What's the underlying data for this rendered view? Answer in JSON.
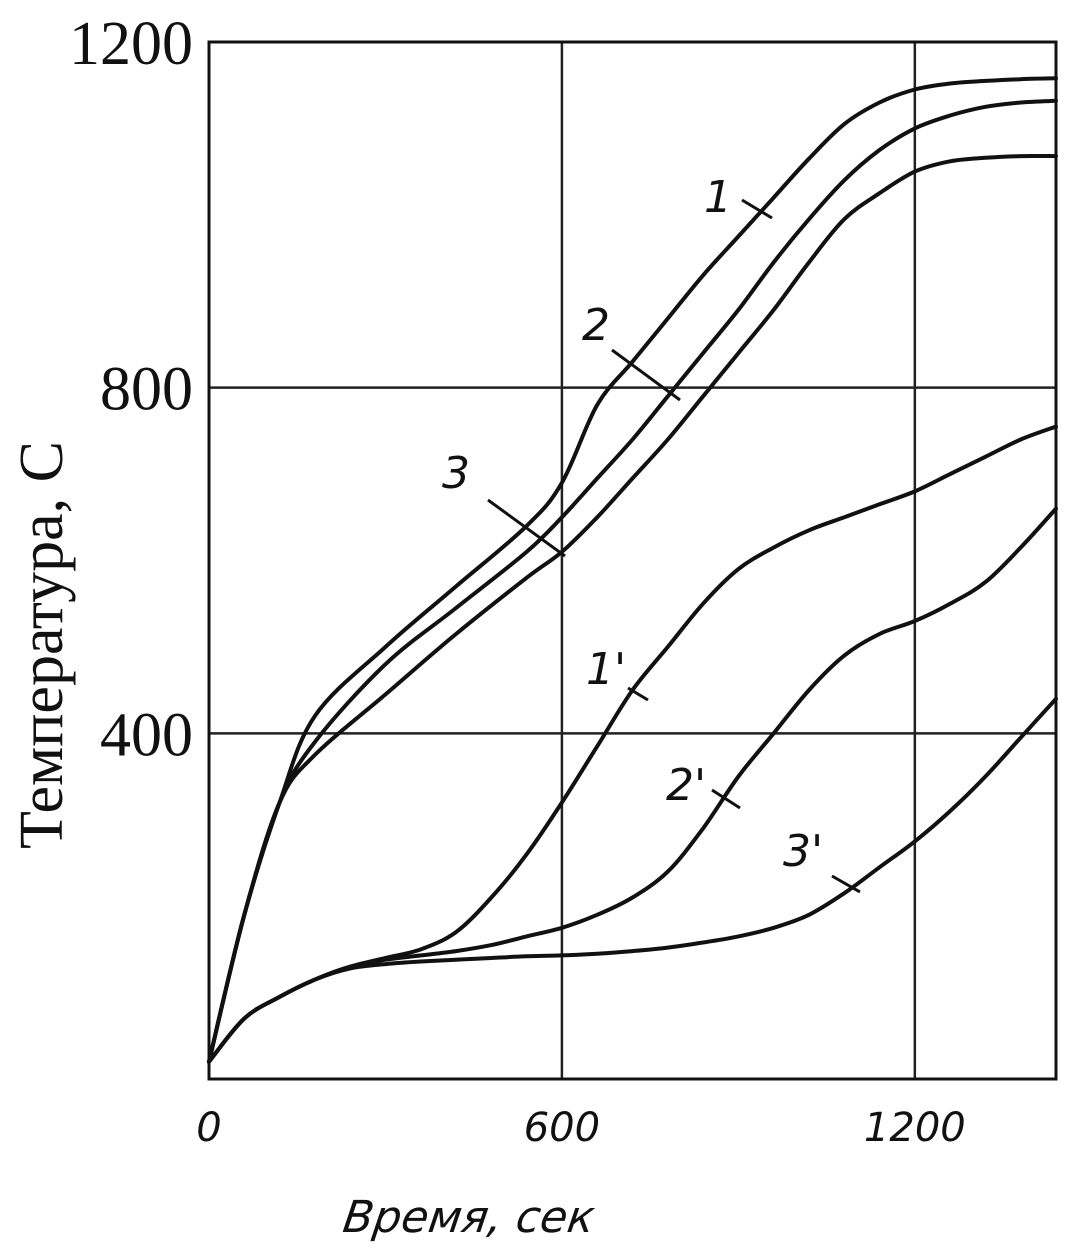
{
  "chart_data": {
    "type": "line",
    "title": "",
    "xlabel": "Время, сек",
    "ylabel": "Температура, С",
    "xlim": [
      0,
      1440
    ],
    "ylim": [
      0,
      1200
    ],
    "x_ticks": [
      {
        "value": 0,
        "label": "0"
      },
      {
        "value": 600,
        "label": "600"
      },
      {
        "value": 1200,
        "label": "1200"
      }
    ],
    "y_ticks": [
      {
        "value": 400,
        "label": "400"
      },
      {
        "value": 800,
        "label": "800"
      },
      {
        "value": 1200,
        "label": "1200"
      }
    ],
    "grid": true,
    "series": [
      {
        "name": "1",
        "x": [
          0,
          60,
          120,
          180,
          300,
          420,
          540,
          600,
          660,
          720,
          780,
          840,
          900,
          960,
          1020,
          1080,
          1140,
          1200,
          1260,
          1320,
          1380,
          1440
        ],
        "y": [
          20,
          190,
          320,
          420,
          500,
          570,
          640,
          690,
          780,
          830,
          880,
          930,
          975,
          1020,
          1065,
          1105,
          1130,
          1145,
          1152,
          1155,
          1157,
          1158
        ]
      },
      {
        "name": "2",
        "x": [
          0,
          60,
          120,
          180,
          300,
          420,
          540,
          600,
          660,
          720,
          780,
          840,
          900,
          960,
          1020,
          1080,
          1140,
          1200,
          1260,
          1320,
          1380,
          1440
        ],
        "y": [
          20,
          190,
          320,
          390,
          480,
          545,
          610,
          650,
          695,
          740,
          790,
          840,
          890,
          945,
          995,
          1040,
          1075,
          1100,
          1115,
          1125,
          1130,
          1132
        ]
      },
      {
        "name": "3",
        "x": [
          0,
          60,
          120,
          180,
          300,
          420,
          540,
          600,
          660,
          720,
          780,
          840,
          900,
          960,
          1020,
          1080,
          1140,
          1200,
          1260,
          1320,
          1380,
          1440
        ],
        "y": [
          20,
          190,
          320,
          375,
          445,
          515,
          580,
          610,
          650,
          695,
          740,
          790,
          840,
          890,
          945,
          995,
          1025,
          1050,
          1062,
          1066,
          1068,
          1068
        ]
      },
      {
        "name": "1'",
        "x": [
          0,
          60,
          120,
          180,
          240,
          300,
          360,
          420,
          480,
          540,
          600,
          660,
          720,
          780,
          840,
          900,
          960,
          1020,
          1080,
          1140,
          1200,
          1260,
          1320,
          1380,
          1440
        ],
        "y": [
          20,
          70,
          95,
          115,
          130,
          140,
          150,
          170,
          210,
          260,
          320,
          385,
          450,
          500,
          550,
          590,
          615,
          635,
          650,
          665,
          680,
          700,
          720,
          740,
          755
        ]
      },
      {
        "name": "2'",
        "x": [
          0,
          60,
          120,
          180,
          240,
          300,
          360,
          420,
          480,
          540,
          600,
          660,
          720,
          780,
          840,
          900,
          960,
          1020,
          1080,
          1140,
          1200,
          1260,
          1320,
          1380,
          1440
        ],
        "y": [
          20,
          70,
          95,
          115,
          130,
          138,
          143,
          148,
          155,
          165,
          175,
          190,
          210,
          240,
          290,
          350,
          400,
          450,
          490,
          515,
          530,
          550,
          575,
          615,
          660
        ]
      },
      {
        "name": "3'",
        "x": [
          0,
          60,
          120,
          180,
          240,
          300,
          360,
          420,
          480,
          540,
          600,
          660,
          720,
          780,
          840,
          900,
          960,
          1020,
          1080,
          1140,
          1200,
          1260,
          1320,
          1380,
          1440
        ],
        "y": [
          20,
          70,
          95,
          115,
          128,
          133,
          136,
          138,
          140,
          142,
          143,
          145,
          148,
          152,
          158,
          165,
          175,
          190,
          215,
          245,
          275,
          310,
          350,
          395,
          440
        ]
      }
    ]
  }
}
